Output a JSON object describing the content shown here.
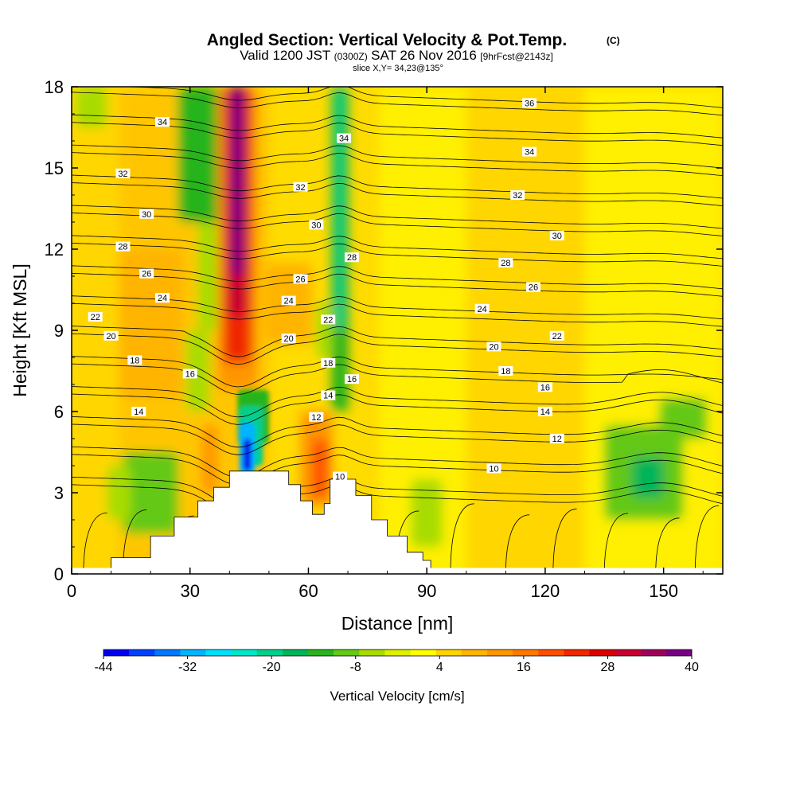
{
  "header": {
    "title": "Angled Section: Vertical Velocity & Pot.Temp.",
    "copyright": "(C)",
    "valid_prefix": "Valid 1200 JST",
    "valid_utc": "(0300Z)",
    "valid_date": "SAT 26 Nov 2016",
    "forecast": "[9hrFcst@2143z]",
    "slice": "slice X,Y= 34,23@135°"
  },
  "chart_data": {
    "type": "heatmap",
    "xlabel": "Distance [nm]",
    "ylabel": "Height [Kft MSL]",
    "xlim": [
      0,
      165
    ],
    "ylim": [
      0,
      18
    ],
    "xticks": [
      0,
      30,
      60,
      90,
      120,
      150
    ],
    "yticks": [
      0,
      3,
      6,
      9,
      12,
      15,
      18
    ],
    "colorbar": {
      "label": "Vertical Velocity [cm/s]",
      "ticks": [
        -44,
        -32,
        -20,
        -8,
        4,
        16,
        28,
        40
      ],
      "range": [
        -44,
        40
      ],
      "colors": [
        "#0000f0",
        "#0040ff",
        "#0078ff",
        "#00b4ff",
        "#00e0ff",
        "#00e6c8",
        "#00d08c",
        "#00b45a",
        "#28b41e",
        "#64c814",
        "#a8dc00",
        "#dcf000",
        "#ffff00",
        "#ffd200",
        "#ffb400",
        "#ff9600",
        "#ff7800",
        "#ff5000",
        "#f02800",
        "#dc0000",
        "#c80032",
        "#a0005a",
        "#780082"
      ]
    },
    "velocity_features": [
      {
        "kind": "updraft-core",
        "x": 42,
        "y_bottom": 6.3,
        "y_top": 18,
        "peak": 40
      },
      {
        "kind": "downdraft-core",
        "x": 45,
        "y_bottom": 3.6,
        "y_top": 6.8,
        "peak": -44
      },
      {
        "kind": "green-band",
        "x": 68,
        "y_bottom": 6.0,
        "y_top": 18,
        "peak": -12
      },
      {
        "kind": "green-region",
        "x": 145,
        "y_bottom": 2.0,
        "y_top": 6.5,
        "peak": -12
      },
      {
        "kind": "orange-patch",
        "x": 20,
        "y_bottom": 6.0,
        "y_top": 12.0,
        "peak": 10
      },
      {
        "kind": "orange-patch",
        "x": 62,
        "y_bottom": 2.5,
        "y_top": 6.0,
        "peak": 14
      }
    ],
    "terrain": [
      [
        10,
        0.6
      ],
      [
        20,
        1.4
      ],
      [
        26,
        2.1
      ],
      [
        32,
        2.7
      ],
      [
        36,
        3.2
      ],
      [
        40,
        3.8
      ],
      [
        51,
        3.8
      ],
      [
        55,
        3.3
      ],
      [
        58,
        2.7
      ],
      [
        61,
        2.2
      ],
      [
        64,
        2.6
      ],
      [
        65.5,
        3.5
      ],
      [
        69,
        3.5
      ],
      [
        72,
        2.9
      ],
      [
        76,
        2.0
      ],
      [
        80,
        1.4
      ],
      [
        85,
        0.8
      ],
      [
        89,
        0.5
      ]
    ],
    "potential_temperature_contours": {
      "levels": [
        10,
        12,
        14,
        16,
        18,
        20,
        22,
        24,
        26,
        28,
        30,
        32,
        34,
        36
      ],
      "labels": [
        {
          "text": "36",
          "x": 116,
          "y": 17.4
        },
        {
          "text": "34",
          "x": 23,
          "y": 16.7
        },
        {
          "text": "34",
          "x": 69,
          "y": 16.1
        },
        {
          "text": "34",
          "x": 116,
          "y": 15.6
        },
        {
          "text": "32",
          "x": 13,
          "y": 14.8
        },
        {
          "text": "32",
          "x": 58,
          "y": 14.3
        },
        {
          "text": "32",
          "x": 113,
          "y": 14.0
        },
        {
          "text": "30",
          "x": 19,
          "y": 13.3
        },
        {
          "text": "30",
          "x": 62,
          "y": 12.9
        },
        {
          "text": "30",
          "x": 123,
          "y": 12.5
        },
        {
          "text": "28",
          "x": 13,
          "y": 12.1
        },
        {
          "text": "28",
          "x": 71,
          "y": 11.7
        },
        {
          "text": "28",
          "x": 110,
          "y": 11.5
        },
        {
          "text": "26",
          "x": 19,
          "y": 11.1
        },
        {
          "text": "26",
          "x": 58,
          "y": 10.9
        },
        {
          "text": "26",
          "x": 117,
          "y": 10.6
        },
        {
          "text": "24",
          "x": 23,
          "y": 10.2
        },
        {
          "text": "24",
          "x": 55,
          "y": 10.1
        },
        {
          "text": "24",
          "x": 104,
          "y": 9.8
        },
        {
          "text": "22",
          "x": 6,
          "y": 9.5
        },
        {
          "text": "22",
          "x": 65,
          "y": 9.4
        },
        {
          "text": "22",
          "x": 123,
          "y": 8.8
        },
        {
          "text": "20",
          "x": 10,
          "y": 8.8
        },
        {
          "text": "20",
          "x": 55,
          "y": 8.7
        },
        {
          "text": "20",
          "x": 107,
          "y": 8.4
        },
        {
          "text": "18",
          "x": 16,
          "y": 7.9
        },
        {
          "text": "18",
          "x": 65,
          "y": 7.8
        },
        {
          "text": "18",
          "x": 110,
          "y": 7.5
        },
        {
          "text": "16",
          "x": 30,
          "y": 7.4
        },
        {
          "text": "16",
          "x": 71,
          "y": 7.2
        },
        {
          "text": "16",
          "x": 120,
          "y": 6.9
        },
        {
          "text": "14",
          "x": 17,
          "y": 6.0
        },
        {
          "text": "14",
          "x": 65,
          "y": 6.6
        },
        {
          "text": "14",
          "x": 120,
          "y": 6.0
        },
        {
          "text": "12",
          "x": 62,
          "y": 5.8
        },
        {
          "text": "12",
          "x": 123,
          "y": 5.0
        },
        {
          "text": "10",
          "x": 68,
          "y": 3.6
        },
        {
          "text": "10",
          "x": 107,
          "y": 3.9
        }
      ]
    },
    "grid": false
  }
}
